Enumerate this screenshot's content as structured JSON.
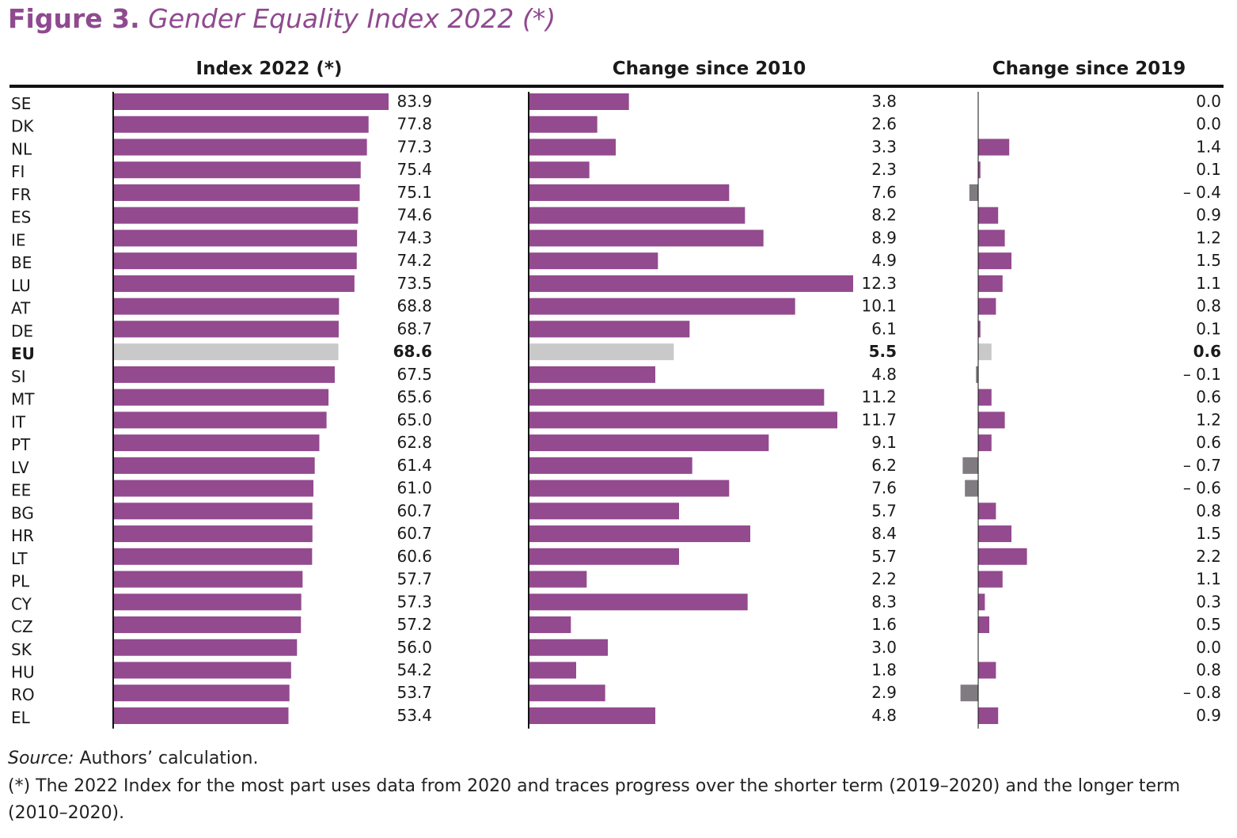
{
  "title": {
    "lead": "Figure 3.",
    "rest": "Gender Equality Index 2022 (*)"
  },
  "colors": {
    "bar": "#934a8f",
    "eu_bar": "#c9c9c9",
    "negative_bar": "#7f7b80",
    "axis": "#111111"
  },
  "chart_data": {
    "type": "bar",
    "orientation": "horizontal",
    "title": "Gender Equality Index 2022 (*)",
    "categories": [
      "SE",
      "DK",
      "NL",
      "FI",
      "FR",
      "ES",
      "IE",
      "BE",
      "LU",
      "AT",
      "DE",
      "EU",
      "SI",
      "MT",
      "IT",
      "PT",
      "LV",
      "EE",
      "BG",
      "HR",
      "LT",
      "PL",
      "CY",
      "CZ",
      "SK",
      "HU",
      "RO",
      "EL"
    ],
    "highlight_category": "EU",
    "series": [
      {
        "name": "Index 2022 (*)",
        "values": [
          83.9,
          77.8,
          77.3,
          75.4,
          75.1,
          74.6,
          74.3,
          74.2,
          73.5,
          68.8,
          68.7,
          68.6,
          67.5,
          65.6,
          65.0,
          62.8,
          61.4,
          61.0,
          60.7,
          60.7,
          60.6,
          57.7,
          57.3,
          57.2,
          56.0,
          54.2,
          53.7,
          53.4
        ],
        "labels": [
          "83.9",
          "77.8",
          "77.3",
          "75.4",
          "75.1",
          "74.6",
          "74.3",
          "74.2",
          "73.5",
          "68.8",
          "68.7",
          "68.6",
          "67.5",
          "65.6",
          "65.0",
          "62.8",
          "61.4",
          "61.0",
          "60.7",
          "60.7",
          "60.6",
          "57.7",
          "57.3",
          "57.2",
          "56.0",
          "54.2",
          "53.7",
          "53.4"
        ],
        "xlim": [
          0,
          100
        ]
      },
      {
        "name": "Change since 2010",
        "values": [
          3.8,
          2.6,
          3.3,
          2.3,
          7.6,
          8.2,
          8.9,
          4.9,
          12.3,
          10.1,
          6.1,
          5.5,
          4.8,
          11.2,
          11.7,
          9.1,
          6.2,
          7.6,
          5.7,
          8.4,
          5.7,
          2.2,
          8.3,
          1.6,
          3.0,
          1.8,
          2.9,
          4.8
        ],
        "labels": [
          "3.8",
          "2.6",
          "3.3",
          "2.3",
          "7.6",
          "8.2",
          "8.9",
          "4.9",
          "12.3",
          "10.1",
          "6.1",
          "5.5",
          "4.8",
          "11.2",
          "11.7",
          "9.1",
          "6.2",
          "7.6",
          "5.7",
          "8.4",
          "5.7",
          "2.2",
          "8.3",
          "1.6",
          "3.0",
          "1.8",
          "2.9",
          "4.8"
        ],
        "xlim": [
          0,
          12.3
        ]
      },
      {
        "name": "Change since 2019",
        "values": [
          0.0,
          0.0,
          1.4,
          0.1,
          -0.4,
          0.9,
          1.2,
          1.5,
          1.1,
          0.8,
          0.1,
          0.6,
          -0.1,
          0.6,
          1.2,
          0.6,
          -0.7,
          -0.6,
          0.8,
          1.5,
          2.2,
          1.1,
          0.3,
          0.5,
          0.0,
          0.8,
          -0.8,
          0.9
        ],
        "labels": [
          "0.0",
          "0.0",
          "1.4",
          "0.1",
          "– 0.4",
          "0.9",
          "1.2",
          "1.5",
          "1.1",
          "0.8",
          "0.1",
          "0.6",
          "– 0.1",
          "0.6",
          "1.2",
          "0.6",
          "– 0.7",
          "– 0.6",
          "0.8",
          "1.5",
          "2.2",
          "1.1",
          "0.3",
          "0.5",
          "0.0",
          "0.8",
          "– 0.8",
          "0.9"
        ],
        "xlim": [
          -0.8,
          2.2
        ]
      }
    ]
  },
  "footer": {
    "source_label": "Source:",
    "source_text": " Authors’ calculation.",
    "note_line1": "(*) The 2022 Index for the most part uses data from 2020 and traces progress over the shorter term (2019–2020) and the longer term",
    "note_line2": "(2010–2020)."
  }
}
